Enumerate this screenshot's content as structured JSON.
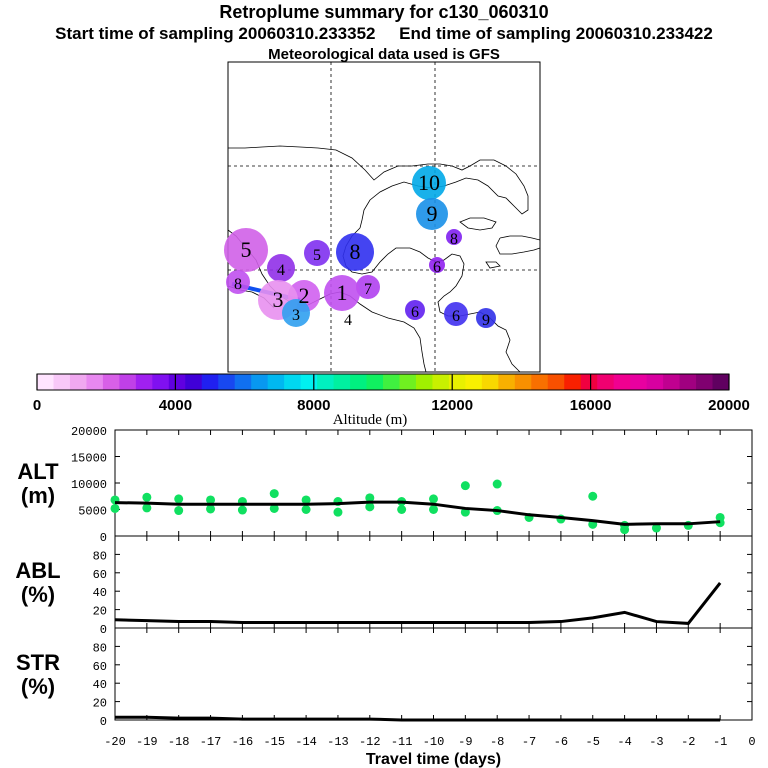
{
  "header": {
    "title": "Retroplume summary for c130_060310",
    "start": "Start time of sampling 20060310.233352",
    "end": "End time of sampling 20060310.233422",
    "met": "Meteorological data used is GFS"
  },
  "colorbar": {
    "label": "Altitude (m)",
    "ticks": [
      "0",
      "4000",
      "8000",
      "12000",
      "16000",
      "20000"
    ],
    "colors": [
      "#ffe4ff",
      "#f8c8f8",
      "#f0a8f0",
      "#e888f0",
      "#d860e8",
      "#c040e8",
      "#a020f0",
      "#8010f0",
      "#6000e0",
      "#4000d8",
      "#2020f0",
      "#1848f0",
      "#1070f0",
      "#0898f0",
      "#00b8f0",
      "#00d8f0",
      "#00f0f0",
      "#00f0c0",
      "#00f0a0",
      "#00f080",
      "#10f060",
      "#40f040",
      "#70f020",
      "#a0f000",
      "#c8f000",
      "#e8f000",
      "#f8f000",
      "#f8d800",
      "#f8b000",
      "#f89000",
      "#f87000",
      "#f85000",
      "#f82000",
      "#f00040",
      "#f00070",
      "#f00090",
      "#e800a0",
      "#d800a0",
      "#c00090",
      "#a00080",
      "#800070",
      "#600060"
    ]
  },
  "map": {
    "labels": [
      {
        "t": "10",
        "c": "#00a8e8"
      },
      {
        "t": "9",
        "c": "#1890e8"
      },
      {
        "t": "8",
        "c": "#8020f0"
      },
      {
        "t": "5",
        "c": "#d060e8"
      },
      {
        "t": "5",
        "c": "#8030f0"
      },
      {
        "t": "8",
        "c": "#3030f0"
      },
      {
        "t": "6",
        "c": "#9020f0"
      },
      {
        "t": "7",
        "c": "#b040f0"
      },
      {
        "t": "1",
        "c": "#c050f0"
      },
      {
        "t": "4",
        "c": "#9030e8"
      },
      {
        "t": "2",
        "c": "#d060f0"
      },
      {
        "t": "3",
        "c": "#e890f0"
      },
      {
        "t": "3",
        "c": "#30a0f0"
      },
      {
        "t": "4",
        "c": "#ffffff"
      },
      {
        "t": "6",
        "c": "#6020f0"
      },
      {
        "t": "6",
        "c": "#4030f0"
      },
      {
        "t": "9",
        "c": "#3030e8"
      },
      {
        "t": "8",
        "c": "#c050f0"
      }
    ]
  },
  "chart_data": [
    {
      "type": "scatter",
      "name": "ALT",
      "ylabel": "ALT\n(m)",
      "ylabel_lines": [
        "ALT",
        "(m)"
      ],
      "xlabel": "Travel time (days)",
      "xlim": [
        -20,
        0
      ],
      "ylim": [
        0,
        20000
      ],
      "yticks": [
        "0",
        "5000",
        "10000",
        "15000",
        "20000"
      ],
      "xticks": [
        "-20",
        "-19",
        "-18",
        "-17",
        "-16",
        "-15",
        "-14",
        "-13",
        "-12",
        "-11",
        "-10",
        "-9",
        "-8",
        "-7",
        "-6",
        "-5",
        "-4",
        "-3",
        "-2",
        "-1",
        "0"
      ],
      "mean_line": {
        "x": [
          -20,
          -19,
          -18,
          -17,
          -16,
          -15,
          -14,
          -13,
          -12,
          -11,
          -10,
          -9,
          -8,
          -7,
          -6,
          -5,
          -4,
          -3,
          -2,
          -1
        ],
        "y": [
          6300,
          6200,
          6000,
          6000,
          6000,
          6000,
          6000,
          6100,
          6400,
          6400,
          6000,
          5200,
          4800,
          4000,
          3500,
          2900,
          2200,
          2300,
          2300,
          2700
        ]
      },
      "points": {
        "x": [
          -20,
          -20,
          -19,
          -19,
          -18,
          -18,
          -17,
          -17,
          -16,
          -16,
          -15,
          -15,
          -14,
          -14,
          -13,
          -13,
          -12,
          -12,
          -11,
          -11,
          -10,
          -10,
          -9,
          -9,
          -8,
          -8,
          -7,
          -6,
          -5,
          -5,
          -4,
          -4,
          -3,
          -2,
          -1,
          -1
        ],
        "y": [
          5200,
          6800,
          5300,
          7300,
          4800,
          7000,
          5100,
          6800,
          4900,
          6500,
          5200,
          8000,
          5000,
          6800,
          4500,
          6500,
          5500,
          7200,
          5000,
          6500,
          5000,
          7000,
          4500,
          9500,
          4800,
          9800,
          3500,
          3200,
          2200,
          7500,
          1200,
          2000,
          1500,
          2000,
          2500,
          3500
        ]
      }
    },
    {
      "type": "line",
      "name": "ABL",
      "ylabel_lines": [
        "ABL",
        "(%)"
      ],
      "ylim": [
        0,
        100
      ],
      "yticks": [
        "0",
        "20",
        "40",
        "60",
        "80"
      ],
      "x": [
        -20,
        -19,
        -18,
        -17,
        -16,
        -15,
        -14,
        -13,
        -12,
        -11,
        -10,
        -9,
        -8,
        -7,
        -6,
        -5,
        -4,
        -3,
        -2,
        -1
      ],
      "y": [
        9,
        8,
        7,
        7,
        6,
        6,
        6,
        6,
        6,
        6,
        6,
        6,
        6,
        6,
        7,
        11,
        17,
        7,
        5,
        49
      ]
    },
    {
      "type": "line",
      "name": "STR",
      "ylabel_lines": [
        "STR",
        "(%)"
      ],
      "ylim": [
        0,
        100
      ],
      "yticks": [
        "0",
        "20",
        "40",
        "60",
        "80"
      ],
      "x": [
        -20,
        -19,
        -18,
        -17,
        -16,
        -15,
        -14,
        -13,
        -12,
        -11,
        -10,
        -9,
        -8,
        -7,
        -6,
        -5,
        -4,
        -3,
        -2,
        -1
      ],
      "y": [
        3,
        3,
        2,
        2,
        1,
        1,
        1,
        1,
        1,
        0,
        0,
        0,
        0,
        0,
        0,
        0,
        0,
        0,
        0,
        0
      ]
    }
  ]
}
